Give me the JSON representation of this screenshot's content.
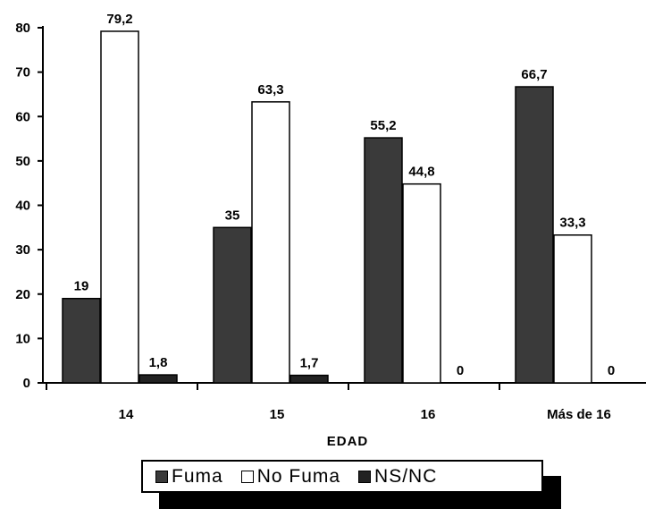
{
  "chart_data": {
    "type": "bar",
    "categories": [
      "14",
      "15",
      "16",
      "Más de 16"
    ],
    "series": [
      {
        "name": "Fuma",
        "values": [
          19,
          35,
          55.2,
          66.7
        ],
        "labels": [
          "19",
          "35",
          "55,2",
          "66,7"
        ]
      },
      {
        "name": "No Fuma",
        "values": [
          79.2,
          63.3,
          44.8,
          33.3
        ],
        "labels": [
          "79,2",
          "63,3",
          "44,8",
          "33,3"
        ]
      },
      {
        "name": "NS/NC",
        "values": [
          1.8,
          1.7,
          0,
          0
        ],
        "labels": [
          "1,8",
          "1,7",
          "0",
          "0"
        ]
      }
    ],
    "colors": {
      "Fuma": "#3a3a3a",
      "No Fuma": "#ffffff",
      "NS/NC": "#222222"
    },
    "xlabel": "EDAD",
    "ylabel": "",
    "ylim": [
      0,
      80
    ],
    "yticks": [
      0,
      10,
      20,
      30,
      40,
      50,
      60,
      70,
      80
    ],
    "grid": false,
    "legend_position": "bottom"
  }
}
